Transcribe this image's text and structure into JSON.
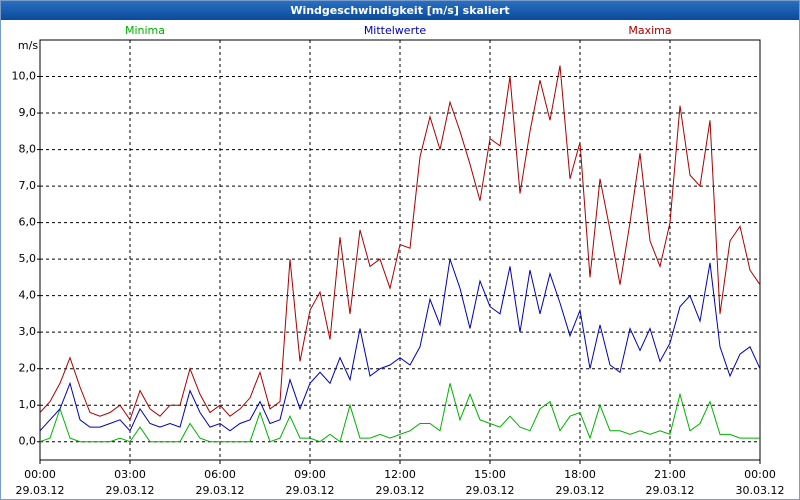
{
  "chart_data": {
    "type": "line",
    "title": "Windgeschwindigkeit [m/s] skaliert",
    "ylabel": "m/s",
    "x": [
      0,
      20,
      40,
      60,
      80,
      100,
      120,
      140,
      160,
      180,
      200,
      220,
      240,
      260,
      280,
      300,
      320,
      340,
      360,
      380,
      400,
      420,
      440,
      460,
      480,
      500,
      520,
      540,
      560,
      580,
      600,
      620,
      640,
      660,
      680,
      700,
      720,
      740,
      760,
      780,
      800,
      820,
      840,
      860,
      880,
      900,
      920,
      940,
      960,
      980,
      1000,
      1020,
      1040,
      1060,
      1080,
      1100,
      1120,
      1140,
      1160,
      1180,
      1200,
      1220,
      1240,
      1260,
      1280,
      1300,
      1320,
      1340,
      1360,
      1380,
      1400,
      1420,
      1440
    ],
    "xlim": [
      0,
      1440
    ],
    "xticks": [
      {
        "value": 0,
        "label": "00:00",
        "sublabel": "29.03.12"
      },
      {
        "value": 180,
        "label": "03:00",
        "sublabel": "29.03.12"
      },
      {
        "value": 360,
        "label": "06:00",
        "sublabel": "29.03.12"
      },
      {
        "value": 540,
        "label": "09:00",
        "sublabel": "29.03.12"
      },
      {
        "value": 720,
        "label": "12:00",
        "sublabel": "29.03.12"
      },
      {
        "value": 900,
        "label": "15:00",
        "sublabel": "29.03.12"
      },
      {
        "value": 1080,
        "label": "18:00",
        "sublabel": "29.03.12"
      },
      {
        "value": 1260,
        "label": "21:00",
        "sublabel": "29.03.12"
      },
      {
        "value": 1440,
        "label": "00:00",
        "sublabel": "30.03.12"
      }
    ],
    "ylim": [
      -0.5,
      11.0
    ],
    "yticks": [
      {
        "value": 0,
        "label": "0,0"
      },
      {
        "value": 1,
        "label": "1,0"
      },
      {
        "value": 2,
        "label": "2,0"
      },
      {
        "value": 3,
        "label": "3,0"
      },
      {
        "value": 4,
        "label": "4,0"
      },
      {
        "value": 5,
        "label": "5,0"
      },
      {
        "value": 6,
        "label": "6,0"
      },
      {
        "value": 7,
        "label": "7,0"
      },
      {
        "value": 8,
        "label": "8,0"
      },
      {
        "value": 9,
        "label": "9,0"
      },
      {
        "value": 10,
        "label": "10,0"
      }
    ],
    "grid": true,
    "series": [
      {
        "name": "Minima",
        "color": "#00b000",
        "values": [
          0.0,
          0.1,
          0.9,
          0.1,
          0.0,
          0.0,
          0.0,
          0.0,
          0.1,
          0.0,
          0.4,
          0.0,
          0.0,
          0.0,
          0.0,
          0.5,
          0.1,
          0.0,
          0.0,
          0.0,
          0.0,
          0.0,
          0.8,
          0.0,
          0.1,
          0.7,
          0.1,
          0.1,
          0.0,
          0.2,
          0.0,
          1.0,
          0.1,
          0.1,
          0.2,
          0.1,
          0.2,
          0.3,
          0.5,
          0.5,
          0.3,
          1.6,
          0.6,
          1.3,
          0.6,
          0.5,
          0.4,
          0.7,
          0.4,
          0.3,
          0.9,
          1.1,
          0.3,
          0.7,
          0.8,
          0.1,
          1.0,
          0.3,
          0.3,
          0.2,
          0.3,
          0.2,
          0.3,
          0.2,
          1.3,
          0.3,
          0.5,
          1.1,
          0.2,
          0.2,
          0.1,
          0.1,
          0.1
        ]
      },
      {
        "name": "Mittelwerte",
        "color": "#0000b0",
        "values": [
          0.3,
          0.6,
          0.9,
          1.6,
          0.6,
          0.4,
          0.4,
          0.5,
          0.6,
          0.3,
          0.9,
          0.5,
          0.4,
          0.5,
          0.4,
          1.4,
          0.8,
          0.4,
          0.5,
          0.3,
          0.5,
          0.6,
          1.1,
          0.5,
          0.6,
          1.7,
          0.9,
          1.6,
          1.9,
          1.6,
          2.3,
          1.7,
          3.1,
          1.8,
          2.0,
          2.1,
          2.3,
          2.1,
          2.6,
          3.9,
          3.2,
          5.0,
          4.2,
          3.1,
          4.4,
          3.7,
          3.5,
          4.8,
          3.0,
          4.7,
          3.5,
          4.6,
          3.8,
          2.9,
          3.6,
          2.0,
          3.2,
          2.1,
          1.9,
          3.1,
          2.5,
          3.1,
          2.2,
          2.7,
          3.7,
          4.0,
          3.3,
          4.9,
          2.6,
          1.8,
          2.4,
          2.6,
          2.0
        ]
      },
      {
        "name": "Maxima",
        "color": "#a80000",
        "values": [
          0.8,
          1.1,
          1.6,
          2.3,
          1.5,
          0.8,
          0.7,
          0.8,
          1.0,
          0.6,
          1.4,
          0.9,
          0.7,
          1.0,
          1.0,
          2.0,
          1.3,
          0.8,
          1.0,
          0.7,
          0.9,
          1.2,
          1.9,
          0.9,
          1.1,
          5.0,
          2.2,
          3.6,
          4.1,
          2.8,
          5.6,
          3.5,
          5.8,
          4.8,
          5.0,
          4.2,
          5.4,
          5.3,
          7.8,
          8.9,
          8.0,
          9.3,
          8.5,
          7.6,
          6.6,
          8.3,
          8.1,
          10.0,
          6.8,
          8.5,
          9.9,
          8.8,
          10.3,
          7.2,
          8.2,
          4.5,
          7.2,
          5.8,
          4.3,
          6.0,
          7.9,
          5.5,
          4.8,
          6.0,
          9.2,
          7.3,
          7.0,
          8.8,
          3.5,
          5.5,
          5.9,
          4.7,
          4.3
        ]
      }
    ]
  }
}
